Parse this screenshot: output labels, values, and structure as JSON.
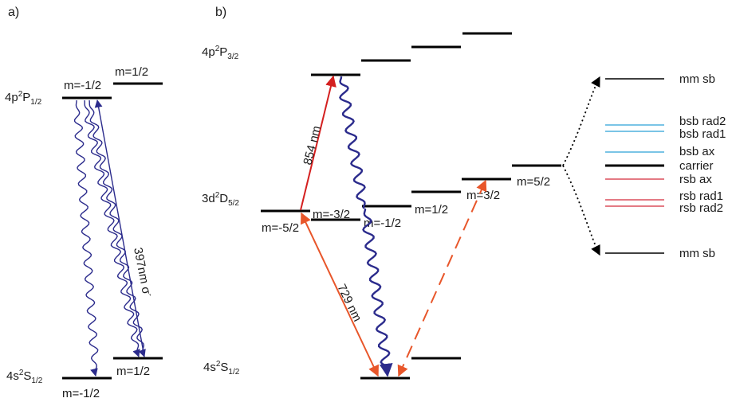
{
  "panel_a": {
    "label": "a)",
    "state_p": {
      "base": "4p",
      "sup": "2",
      "mid": "P",
      "sub": "1/2"
    },
    "state_s": {
      "base": "4s",
      "sup": "2",
      "mid": "S",
      "sub": "1/2"
    },
    "m_p_left": "m=-1/2",
    "m_p_right": "m=1/2",
    "m_s_left": "m=-1/2",
    "m_s_right": "m=1/2",
    "transition_label": "397nm σ",
    "transition_sup": "-"
  },
  "panel_b": {
    "label": "b)",
    "state_p": {
      "base": "4p",
      "sup": "2",
      "mid": "P",
      "sub": "3/2"
    },
    "state_d": {
      "base": "3d",
      "sup": "2",
      "mid": "D",
      "sub": "5/2"
    },
    "state_s": {
      "base": "4s",
      "sup": "2",
      "mid": "S",
      "sub": "1/2"
    },
    "m_d": [
      "m=-5/2",
      "m=-3/2",
      "m=-1/2",
      "m=1/2",
      "m=3/2",
      "m=5/2"
    ],
    "label_854": "854 nm",
    "label_729": "729 nm",
    "spectrum": [
      "mm sb",
      "bsb rad2",
      "bsb rad1",
      "bsb ax",
      "carrier",
      "rsb ax",
      "rsb rad1",
      "rsb rad2",
      "mm sb"
    ]
  },
  "colors": {
    "level": "#000000",
    "wavy": "#2b2b8c",
    "red_854": "#d42020",
    "orange_729": "#e8562a",
    "blue_sb": "#2aa0d8",
    "red_sb": "#d42a3a"
  }
}
